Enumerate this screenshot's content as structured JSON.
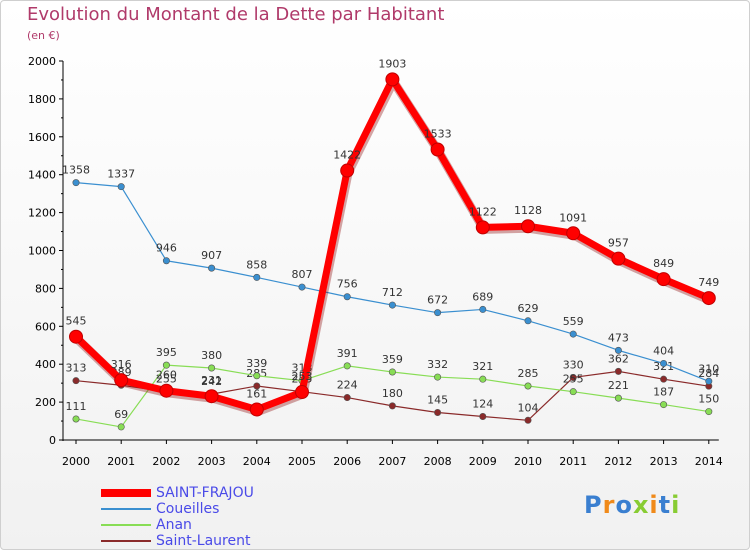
{
  "chart_data": {
    "type": "line",
    "title": "Evolution du Montant de la Dette par Habitant",
    "subtitle": "(en €)",
    "categories": [
      "2000",
      "2001",
      "2002",
      "2003",
      "2004",
      "2005",
      "2006",
      "2007",
      "2008",
      "2009",
      "2010",
      "2011",
      "2012",
      "2013",
      "2014"
    ],
    "ylim": [
      0,
      2000
    ],
    "yticks": [
      "0",
      "200",
      "400",
      "600",
      "800",
      "1000",
      "1200",
      "1400",
      "1600",
      "1800",
      "2000"
    ],
    "grid": false,
    "legend_position": "bottom-left",
    "series": [
      {
        "name": "SAINT-FRAJOU",
        "color": "#ff0000",
        "values": [
          545,
          316,
          260,
          231,
          161,
          253,
          1422,
          1903,
          1533,
          1122,
          1128,
          1091,
          957,
          849,
          749
        ]
      },
      {
        "name": "Coueilles",
        "color": "#3a8fd0",
        "values": [
          1358,
          1337,
          946,
          907,
          858,
          807,
          756,
          712,
          672,
          689,
          629,
          559,
          473,
          404,
          310
        ]
      },
      {
        "name": "Anan",
        "color": "#88dd55",
        "values": [
          111,
          69,
          395,
          380,
          339,
          313,
          391,
          359,
          332,
          321,
          285,
          255,
          221,
          187,
          150
        ]
      },
      {
        "name": "Saint-Laurent",
        "color": "#8a2a2a",
        "values": [
          313,
          289,
          255,
          242,
          285,
          255,
          224,
          180,
          145,
          124,
          104,
          330,
          362,
          321,
          284
        ]
      }
    ]
  },
  "logo": {
    "text": "Proxiti"
  }
}
